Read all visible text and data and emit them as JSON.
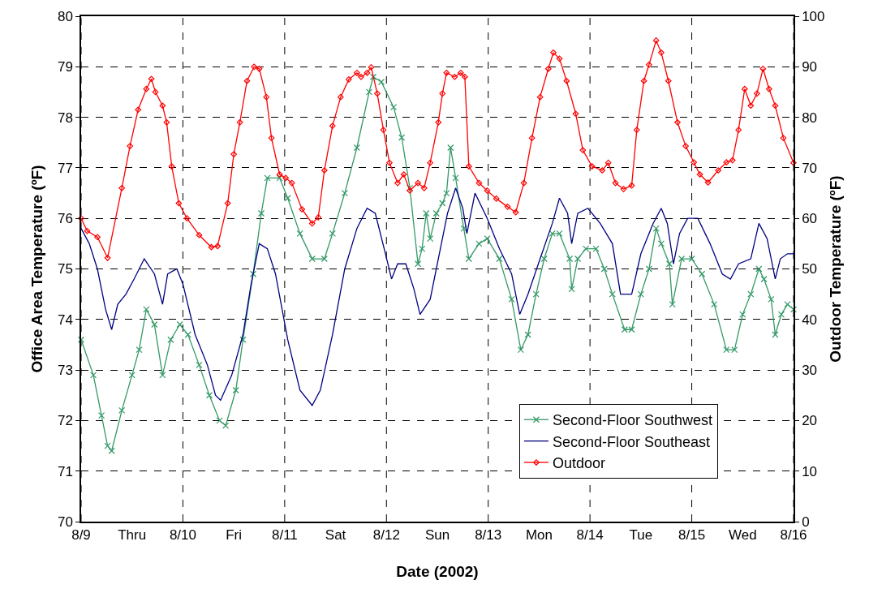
{
  "chart_data": {
    "type": "line",
    "xlabel": "Date (2002)",
    "ylabel": "Office Area Temperature (ºF)",
    "y2label": "Outdoor Temperature (ºF)",
    "xlim": [
      "2002-08-09",
      "2002-08-16"
    ],
    "xticks": [
      {
        "value": "2002-08-09",
        "label": "8/9"
      },
      {
        "value": "2002-08-09T12:00",
        "label": "Thru"
      },
      {
        "value": "2002-08-10",
        "label": "8/10"
      },
      {
        "value": "2002-08-10T12:00",
        "label": "Fri"
      },
      {
        "value": "2002-08-11",
        "label": "8/11"
      },
      {
        "value": "2002-08-11T12:00",
        "label": "Sat"
      },
      {
        "value": "2002-08-12",
        "label": "8/12"
      },
      {
        "value": "2002-08-12T12:00",
        "label": "Sun"
      },
      {
        "value": "2002-08-13",
        "label": "8/13"
      },
      {
        "value": "2002-08-13T12:00",
        "label": "Mon"
      },
      {
        "value": "2002-08-14",
        "label": "8/14"
      },
      {
        "value": "2002-08-14T12:00",
        "label": "Tue"
      },
      {
        "value": "2002-08-15",
        "label": "8/15"
      },
      {
        "value": "2002-08-15T12:00",
        "label": "Wed"
      },
      {
        "value": "2002-08-16",
        "label": "8/16"
      }
    ],
    "ylim": [
      70,
      80
    ],
    "yticks": [
      70,
      71,
      72,
      73,
      74,
      75,
      76,
      77,
      78,
      79,
      80
    ],
    "y2lim": [
      0,
      100
    ],
    "y2ticks": [
      0,
      10,
      20,
      30,
      40,
      50,
      60,
      70,
      80,
      90,
      100
    ],
    "grid": true,
    "legend": "bottom right",
    "line_style": "solid",
    "series": [
      {
        "name": "Second-Floor Southwest",
        "color": "#339966",
        "marker": "cross",
        "x": [
          "2002-08-09T00:00",
          "2002-08-09T02:53",
          "2002-08-09T04:48",
          "2002-08-09T06:14",
          "2002-08-09T07:12",
          "2002-08-09T09:36",
          "2002-08-09T12:00",
          "2002-08-09T13:41",
          "2002-08-09T15:22",
          "2002-08-09T17:17",
          "2002-08-09T19:12",
          "2002-08-09T21:07",
          "2002-08-09T23:17",
          "2002-08-10T01:12",
          "2002-08-10T03:50",
          "2002-08-10T06:14",
          "2002-08-10T08:38",
          "2002-08-10T10:05",
          "2002-08-10T12:29",
          "2002-08-10T14:10",
          "2002-08-10T16:34",
          "2002-08-10T18:29",
          "2002-08-10T19:55",
          "2002-08-10T22:48",
          "2002-08-11T00:43",
          "2002-08-11T03:36",
          "2002-08-11T06:29",
          "2002-08-11T09:22",
          "2002-08-11T11:17",
          "2002-08-11T14:10",
          "2002-08-11T17:02",
          "2002-08-11T19:55",
          "2002-08-11T20:53",
          "2002-08-11T22:48",
          "2002-08-12T01:41",
          "2002-08-12T03:36",
          "2002-08-12T05:31",
          "2002-08-12T07:26",
          "2002-08-12T08:24",
          "2002-08-12T09:22",
          "2002-08-12T10:19",
          "2002-08-12T11:46",
          "2002-08-12T13:12",
          "2002-08-12T14:10",
          "2002-08-12T15:07",
          "2002-08-12T16:19",
          "2002-08-12T18:14",
          "2002-08-12T19:26",
          "2002-08-12T21:50",
          "2002-08-12T23:46",
          "2002-08-13T02:38",
          "2002-08-13T05:31",
          "2002-08-13T07:41",
          "2002-08-13T09:22",
          "2002-08-13T11:17",
          "2002-08-13T13:12",
          "2002-08-13T15:07",
          "2002-08-13T16:48",
          "2002-08-13T19:12",
          "2002-08-13T19:41",
          "2002-08-13T21:07",
          "2002-08-13T23:02",
          "2002-08-14T01:26",
          "2002-08-14T03:22",
          "2002-08-14T05:17",
          "2002-08-14T08:10",
          "2002-08-14T09:50",
          "2002-08-14T12:00",
          "2002-08-14T13:55",
          "2002-08-14T15:36",
          "2002-08-14T16:48",
          "2002-08-14T18:43",
          "2002-08-14T19:26",
          "2002-08-14T21:36",
          "2002-08-15T00:00",
          "2002-08-15T02:24",
          "2002-08-15T05:17",
          "2002-08-15T08:10",
          "2002-08-15T10:05",
          "2002-08-15T12:00",
          "2002-08-15T13:55",
          "2002-08-15T15:50",
          "2002-08-15T17:02",
          "2002-08-15T18:43",
          "2002-08-15T19:41",
          "2002-08-15T21:07",
          "2002-08-15T22:34",
          "2002-08-16T00:00"
        ],
        "values": [
          73.6,
          72.9,
          72.1,
          71.5,
          71.4,
          72.2,
          72.9,
          73.4,
          74.2,
          73.9,
          72.9,
          73.6,
          73.9,
          73.7,
          73.1,
          72.5,
          72,
          71.9,
          72.6,
          73.6,
          74.9,
          76.1,
          76.8,
          76.8,
          76.4,
          75.7,
          75.2,
          75.2,
          75.7,
          76.5,
          77.4,
          78.5,
          78.8,
          78.7,
          78.2,
          77.6,
          76.6,
          75.1,
          75.4,
          76.1,
          75.6,
          76.1,
          76.3,
          76.5,
          77.4,
          76.8,
          75.8,
          75.2,
          75.5,
          75.6,
          75.2,
          74.4,
          73.4,
          73.7,
          74.5,
          75.2,
          75.7,
          75.7,
          75.2,
          74.6,
          75.2,
          75.4,
          75.4,
          75,
          74.5,
          73.8,
          73.8,
          74.5,
          75,
          75.8,
          75.5,
          75.1,
          74.3,
          75.2,
          75.2,
          74.9,
          74.3,
          73.4,
          73.4,
          74.1,
          74.5,
          75,
          74.8,
          74.4,
          73.7,
          74.1,
          74.3,
          74.2
        ]
      },
      {
        "name": "Second-Floor Southeast",
        "color": "#000080",
        "marker": "none",
        "x": [
          "2002-08-09T00:00",
          "2002-08-09T01:55",
          "2002-08-09T03:50",
          "2002-08-09T05:46",
          "2002-08-09T07:12",
          "2002-08-09T08:38",
          "2002-08-09T10:34",
          "2002-08-09T12:29",
          "2002-08-09T14:53",
          "2002-08-09T17:17",
          "2002-08-09T19:12",
          "2002-08-09T20:24",
          "2002-08-09T22:34",
          "2002-08-10T00:00",
          "2002-08-10T02:53",
          "2002-08-10T05:46",
          "2002-08-10T07:41",
          "2002-08-10T08:53",
          "2002-08-10T11:31",
          "2002-08-10T14:10",
          "2002-08-10T16:05",
          "2002-08-10T18:00",
          "2002-08-10T19:55",
          "2002-08-10T21:50",
          "2002-08-11T00:43",
          "2002-08-11T03:36",
          "2002-08-11T06:29",
          "2002-08-11T08:24",
          "2002-08-11T11:17",
          "2002-08-11T14:10",
          "2002-08-11T17:02",
          "2002-08-11T19:26",
          "2002-08-11T21:22",
          "2002-08-11T23:46",
          "2002-08-12T01:12",
          "2002-08-12T02:38",
          "2002-08-12T04:34",
          "2002-08-12T06:29",
          "2002-08-12T07:55",
          "2002-08-12T10:19",
          "2002-08-12T12:14",
          "2002-08-12T14:24",
          "2002-08-12T16:19",
          "2002-08-12T18:00",
          "2002-08-12T18:58",
          "2002-08-12T20:53",
          "2002-08-12T23:46",
          "2002-08-13T02:38",
          "2002-08-13T05:31",
          "2002-08-13T07:26",
          "2002-08-13T09:22",
          "2002-08-13T12:14",
          "2002-08-13T15:07",
          "2002-08-13T16:48",
          "2002-08-13T18:43",
          "2002-08-13T19:41",
          "2002-08-13T21:07",
          "2002-08-13T23:31",
          "2002-08-14T02:24",
          "2002-08-14T05:17",
          "2002-08-14T07:12",
          "2002-08-14T09:50",
          "2002-08-14T12:00",
          "2002-08-14T14:53",
          "2002-08-14T16:48",
          "2002-08-14T18:14",
          "2002-08-14T19:41",
          "2002-08-14T21:07",
          "2002-08-14T23:02",
          "2002-08-15T01:26",
          "2002-08-15T04:19",
          "2002-08-15T07:12",
          "2002-08-15T09:07",
          "2002-08-15T11:02",
          "2002-08-15T13:55",
          "2002-08-15T15:50",
          "2002-08-15T17:46",
          "2002-08-15T19:41",
          "2002-08-15T20:53",
          "2002-08-15T22:34",
          "2002-08-16T00:00"
        ],
        "values": [
          75.8,
          75.5,
          75,
          74.2,
          73.8,
          74.3,
          74.5,
          74.8,
          75.2,
          74.9,
          74.3,
          74.9,
          75,
          74.7,
          73.7,
          73.1,
          72.5,
          72.4,
          72.9,
          73.7,
          74.7,
          75.5,
          75.4,
          74.9,
          73.6,
          72.6,
          72.3,
          72.6,
          73.7,
          75,
          75.8,
          76.2,
          76.1,
          75.3,
          74.8,
          75.1,
          75.1,
          74.6,
          74.1,
          74.4,
          75.2,
          76.1,
          76.6,
          76.2,
          75.7,
          76.5,
          76,
          75.4,
          74.9,
          74.1,
          74.5,
          75.2,
          75.9,
          76.4,
          76.1,
          75.5,
          76.1,
          76.2,
          75.9,
          75.5,
          74.5,
          74.5,
          75.3,
          75.9,
          76.2,
          75.9,
          75.1,
          75.7,
          76,
          76,
          75.5,
          74.9,
          74.8,
          75.1,
          75.2,
          75.9,
          75.6,
          74.8,
          75.2,
          75.3,
          75.3
        ]
      },
      {
        "name": "Outdoor",
        "color": "#ff0000",
        "marker": "diamond",
        "axis": "y2",
        "x": [
          "2002-08-09T00:00",
          "2002-08-09T01:26",
          "2002-08-09T03:50",
          "2002-08-09T06:14",
          "2002-08-09T09:36",
          "2002-08-09T11:31",
          "2002-08-09T13:26",
          "2002-08-09T15:22",
          "2002-08-09T16:34",
          "2002-08-09T17:31",
          "2002-08-09T19:12",
          "2002-08-09T20:10",
          "2002-08-09T21:22",
          "2002-08-09T23:02",
          "2002-08-10T00:58",
          "2002-08-10T03:50",
          "2002-08-10T06:43",
          "2002-08-10T08:10",
          "2002-08-10T10:34",
          "2002-08-10T12:00",
          "2002-08-10T13:26",
          "2002-08-10T15:07",
          "2002-08-10T16:48",
          "2002-08-10T18:00",
          "2002-08-10T19:41",
          "2002-08-10T20:53",
          "2002-08-10T22:48",
          "2002-08-11T00:14",
          "2002-08-11T01:41",
          "2002-08-11T04:05",
          "2002-08-11T06:29",
          "2002-08-11T07:55",
          "2002-08-11T09:22",
          "2002-08-11T11:17",
          "2002-08-11T13:12",
          "2002-08-11T15:07",
          "2002-08-11T17:02",
          "2002-08-11T18:00",
          "2002-08-11T19:26",
          "2002-08-11T20:24",
          "2002-08-11T21:50",
          "2002-08-11T23:17",
          "2002-08-12T00:43",
          "2002-08-12T02:38",
          "2002-08-12T04:05",
          "2002-08-12T05:31",
          "2002-08-12T07:26",
          "2002-08-12T08:53",
          "2002-08-12T10:19",
          "2002-08-12T12:14",
          "2002-08-12T13:12",
          "2002-08-12T14:10",
          "2002-08-12T16:05",
          "2002-08-12T17:31",
          "2002-08-12T18:29",
          "2002-08-12T19:26",
          "2002-08-12T21:50",
          "2002-08-12T23:46",
          "2002-08-13T01:55",
          "2002-08-13T04:34",
          "2002-08-13T06:29",
          "2002-08-13T08:24",
          "2002-08-13T10:19",
          "2002-08-13T12:14",
          "2002-08-13T14:10",
          "2002-08-13T15:22",
          "2002-08-13T16:48",
          "2002-08-13T18:29",
          "2002-08-13T20:38",
          "2002-08-13T22:19",
          "2002-08-14T00:29",
          "2002-08-14T02:53",
          "2002-08-14T04:19",
          "2002-08-14T06:00",
          "2002-08-14T07:55",
          "2002-08-14T09:50",
          "2002-08-14T11:02",
          "2002-08-14T12:43",
          "2002-08-14T13:55",
          "2002-08-14T15:36",
          "2002-08-14T16:48",
          "2002-08-14T18:29",
          "2002-08-14T20:38",
          "2002-08-14T22:34",
          "2002-08-15T00:29",
          "2002-08-15T01:55",
          "2002-08-15T03:50",
          "2002-08-15T06:14",
          "2002-08-15T08:10",
          "2002-08-15T09:36",
          "2002-08-15T11:02",
          "2002-08-15T12:29",
          "2002-08-15T13:55",
          "2002-08-15T15:22",
          "2002-08-15T16:48",
          "2002-08-15T18:14",
          "2002-08-15T19:41",
          "2002-08-15T21:36",
          "2002-08-16T00:00"
        ],
        "values": [
          60,
          57.5,
          56.3,
          52.2,
          66,
          74.3,
          81.5,
          85.6,
          87.6,
          85,
          82.3,
          79,
          70.3,
          63,
          60,
          56.7,
          54.3,
          54.5,
          63,
          72.7,
          79,
          87.2,
          90,
          89.6,
          84,
          75.9,
          68.7,
          68,
          67,
          61.8,
          59,
          60.2,
          69.5,
          78.3,
          84,
          87.5,
          88.8,
          88,
          88.8,
          89.9,
          84.7,
          77.5,
          71,
          67,
          68.7,
          65.5,
          67,
          66,
          71,
          79,
          84.7,
          88.8,
          88,
          88.8,
          88,
          70.3,
          67,
          65.5,
          63.9,
          62.3,
          61.2,
          67,
          75.9,
          84,
          89.6,
          92.8,
          91.6,
          87.2,
          80.7,
          73.5,
          70.3,
          69.5,
          71,
          67,
          65.8,
          66.5,
          77.5,
          87.2,
          90.4,
          95.2,
          92.8,
          87.2,
          79,
          74.3,
          71.1,
          68.7,
          67.1,
          69.5,
          71.1,
          71.5,
          77.5,
          85.6,
          82.3,
          84.7,
          89.6,
          85.6,
          82.3,
          75.9,
          71
        ]
      }
    ]
  }
}
